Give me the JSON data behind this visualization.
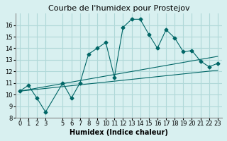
{
  "title": "Courbe de l'humidex pour Prostejov",
  "xlabel": "Humidex (Indice chaleur)",
  "ylabel": "",
  "background_color": "#d8f0f0",
  "grid_color": "#b0d8d8",
  "line_color": "#006666",
  "xlim": [
    -0.5,
    23.5
  ],
  "ylim": [
    8,
    17
  ],
  "yticks": [
    8,
    9,
    10,
    11,
    12,
    13,
    14,
    15,
    16
  ],
  "xticks": [
    0,
    1,
    2,
    3,
    5,
    6,
    7,
    8,
    9,
    10,
    11,
    12,
    13,
    14,
    15,
    16,
    17,
    18,
    19,
    20,
    21,
    22,
    23
  ],
  "main_x": [
    0,
    1,
    2,
    3,
    5,
    6,
    7,
    8,
    9,
    10,
    11,
    12,
    13,
    14,
    15,
    16,
    17,
    18,
    19,
    20,
    21,
    22,
    23
  ],
  "main_y": [
    10.3,
    10.8,
    9.7,
    8.5,
    11.0,
    9.7,
    11.0,
    13.5,
    14.0,
    14.5,
    11.5,
    15.8,
    16.5,
    16.5,
    15.2,
    14.0,
    15.6,
    14.9,
    13.7,
    13.8,
    12.9,
    12.4,
    12.7
  ],
  "line1_x": [
    0,
    23
  ],
  "line1_y": [
    10.3,
    13.3
  ],
  "line2_x": [
    0,
    23
  ],
  "line2_y": [
    10.3,
    12.1
  ],
  "title_fontsize": 8,
  "axis_fontsize": 7,
  "tick_fontsize": 6
}
